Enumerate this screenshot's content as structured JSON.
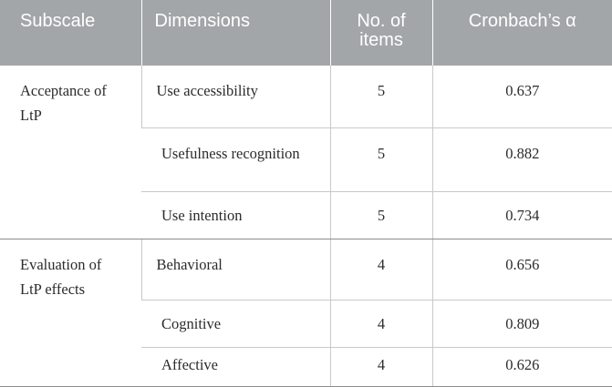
{
  "headers": {
    "subscale": "Subscale",
    "dimensions": "Dimensions",
    "items": "No. of items",
    "alpha": "Cronbach’s α"
  },
  "groups": [
    {
      "subscale": "Acceptance of LtP",
      "rows": [
        {
          "dimension": "Use accessibility",
          "items": "5",
          "alpha": "0.637"
        },
        {
          "dimension": "Usefulness recognition",
          "items": "5",
          "alpha": "0.882"
        },
        {
          "dimension": "Use intention",
          "items": "5",
          "alpha": "0.734"
        }
      ]
    },
    {
      "subscale": "Evaluation of LtP effects",
      "rows": [
        {
          "dimension": "Behavioral",
          "items": "4",
          "alpha": "0.656"
        },
        {
          "dimension": "Cognitive",
          "items": "4",
          "alpha": "0.809"
        },
        {
          "dimension": "Affective",
          "items": "4",
          "alpha": "0.626"
        }
      ]
    }
  ]
}
